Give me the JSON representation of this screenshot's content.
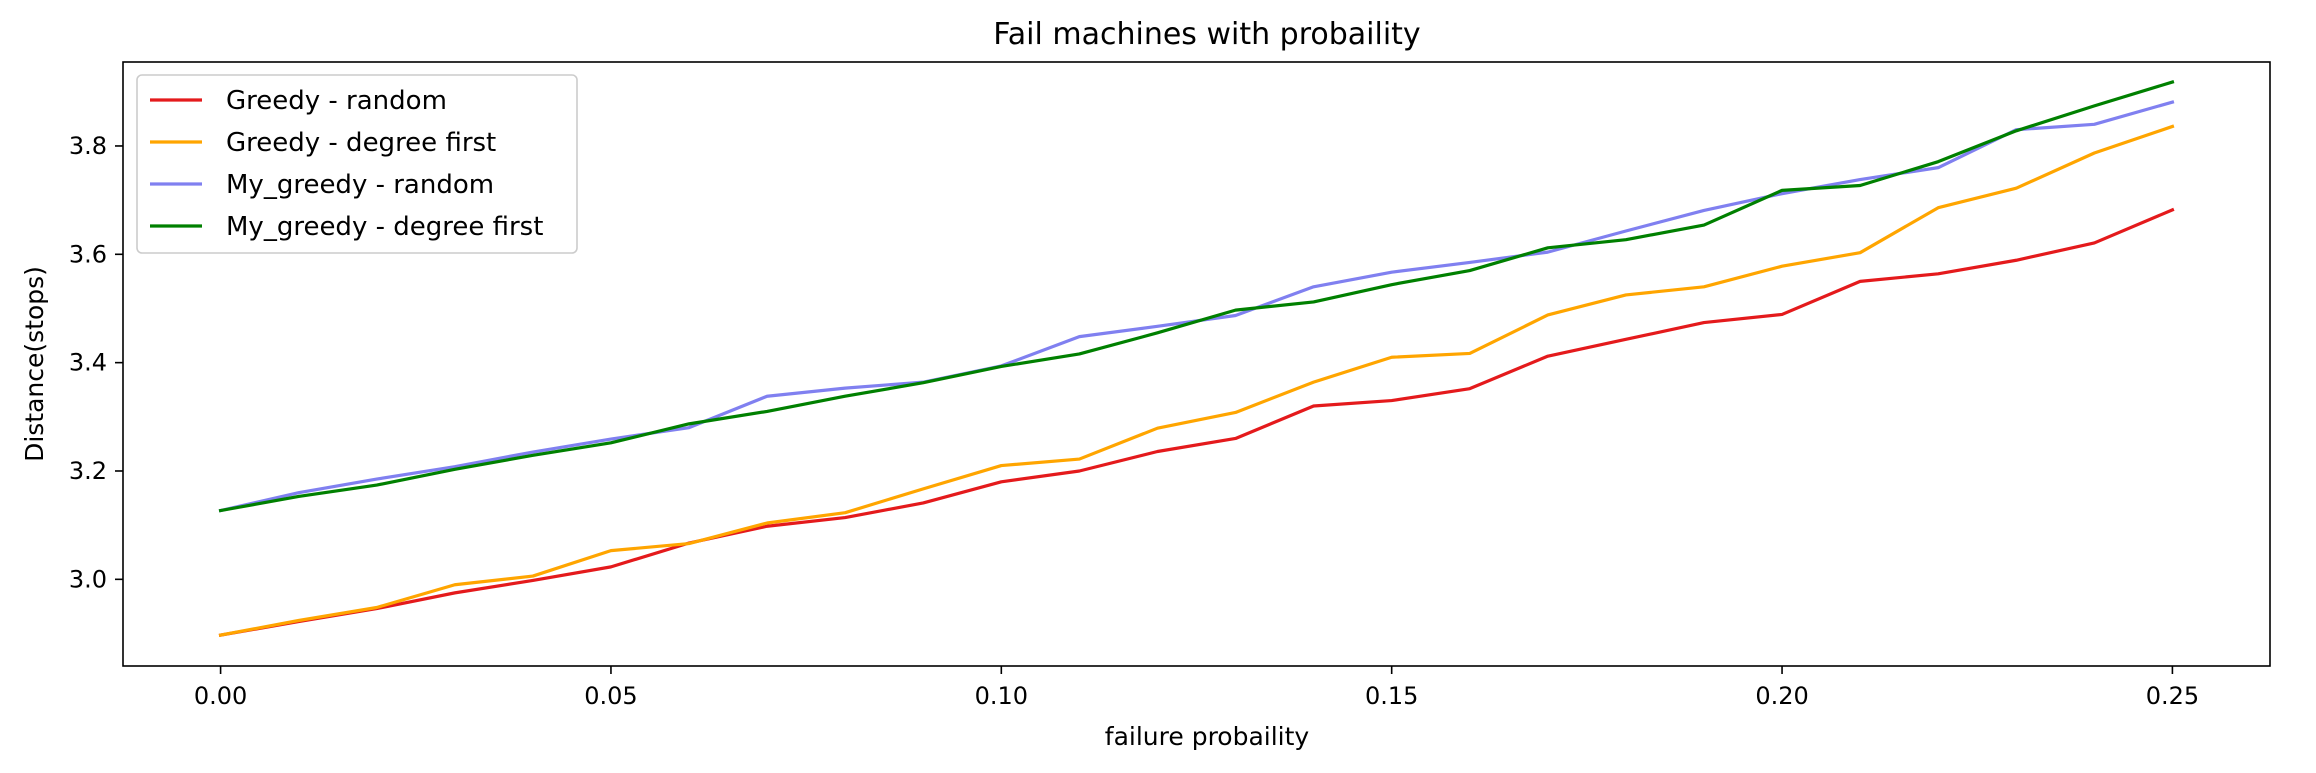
{
  "chart_data": {
    "type": "line",
    "title": "Fail machines with probaility",
    "xlabel": "failure probaility",
    "ylabel": "Distance(stops)",
    "xlim": [
      -0.0125,
      0.2625
    ],
    "ylim": [
      2.84,
      3.955
    ],
    "xticks": [
      0.0,
      0.05,
      0.1,
      0.15,
      0.2,
      0.25
    ],
    "xtick_labels": [
      "0.00",
      "0.05",
      "0.10",
      "0.15",
      "0.20",
      "0.25"
    ],
    "yticks": [
      3.0,
      3.2,
      3.4,
      3.6,
      3.8
    ],
    "ytick_labels": [
      "3.0",
      "3.2",
      "3.4",
      "3.6",
      "3.8"
    ],
    "grid": false,
    "legend_position": "top-left",
    "x": [
      0.0,
      0.01,
      0.02,
      0.03,
      0.04,
      0.05,
      0.06,
      0.07,
      0.08,
      0.09,
      0.1,
      0.11,
      0.12,
      0.13,
      0.14,
      0.15,
      0.16,
      0.17,
      0.18,
      0.19,
      0.2,
      0.21,
      0.22,
      0.23,
      0.24,
      0.25
    ],
    "series": [
      {
        "name": "Greedy - random",
        "color": "#e41a1c",
        "values": [
          2.897,
          2.922,
          2.946,
          2.975,
          2.998,
          3.023,
          3.067,
          3.098,
          3.114,
          3.141,
          3.18,
          3.2,
          3.236,
          3.26,
          3.32,
          3.33,
          3.352,
          3.412,
          3.443,
          3.474,
          3.489,
          3.55,
          3.564,
          3.589,
          3.621,
          3.682
        ]
      },
      {
        "name": "Greedy - degree first",
        "color": "#ffa500",
        "values": [
          2.897,
          2.924,
          2.948,
          2.99,
          3.006,
          3.053,
          3.066,
          3.104,
          3.123,
          3.167,
          3.21,
          3.222,
          3.279,
          3.308,
          3.364,
          3.41,
          3.417,
          3.488,
          3.525,
          3.54,
          3.578,
          3.603,
          3.686,
          3.722,
          3.787,
          3.836
        ]
      },
      {
        "name": "My_greedy - random",
        "color": "#8080f0",
        "values": [
          3.127,
          3.16,
          3.185,
          3.208,
          3.235,
          3.259,
          3.28,
          3.338,
          3.353,
          3.364,
          3.394,
          3.448,
          3.467,
          3.487,
          3.54,
          3.567,
          3.585,
          3.604,
          3.643,
          3.681,
          3.712,
          3.738,
          3.76,
          3.83,
          3.84,
          3.881
        ]
      },
      {
        "name": "My_greedy - degree first",
        "color": "#008000",
        "values": [
          3.127,
          3.153,
          3.174,
          3.203,
          3.229,
          3.252,
          3.287,
          3.31,
          3.338,
          3.363,
          3.393,
          3.416,
          3.455,
          3.497,
          3.512,
          3.544,
          3.57,
          3.612,
          3.627,
          3.654,
          3.718,
          3.727,
          3.771,
          3.828,
          3.874,
          3.918
        ]
      }
    ]
  }
}
